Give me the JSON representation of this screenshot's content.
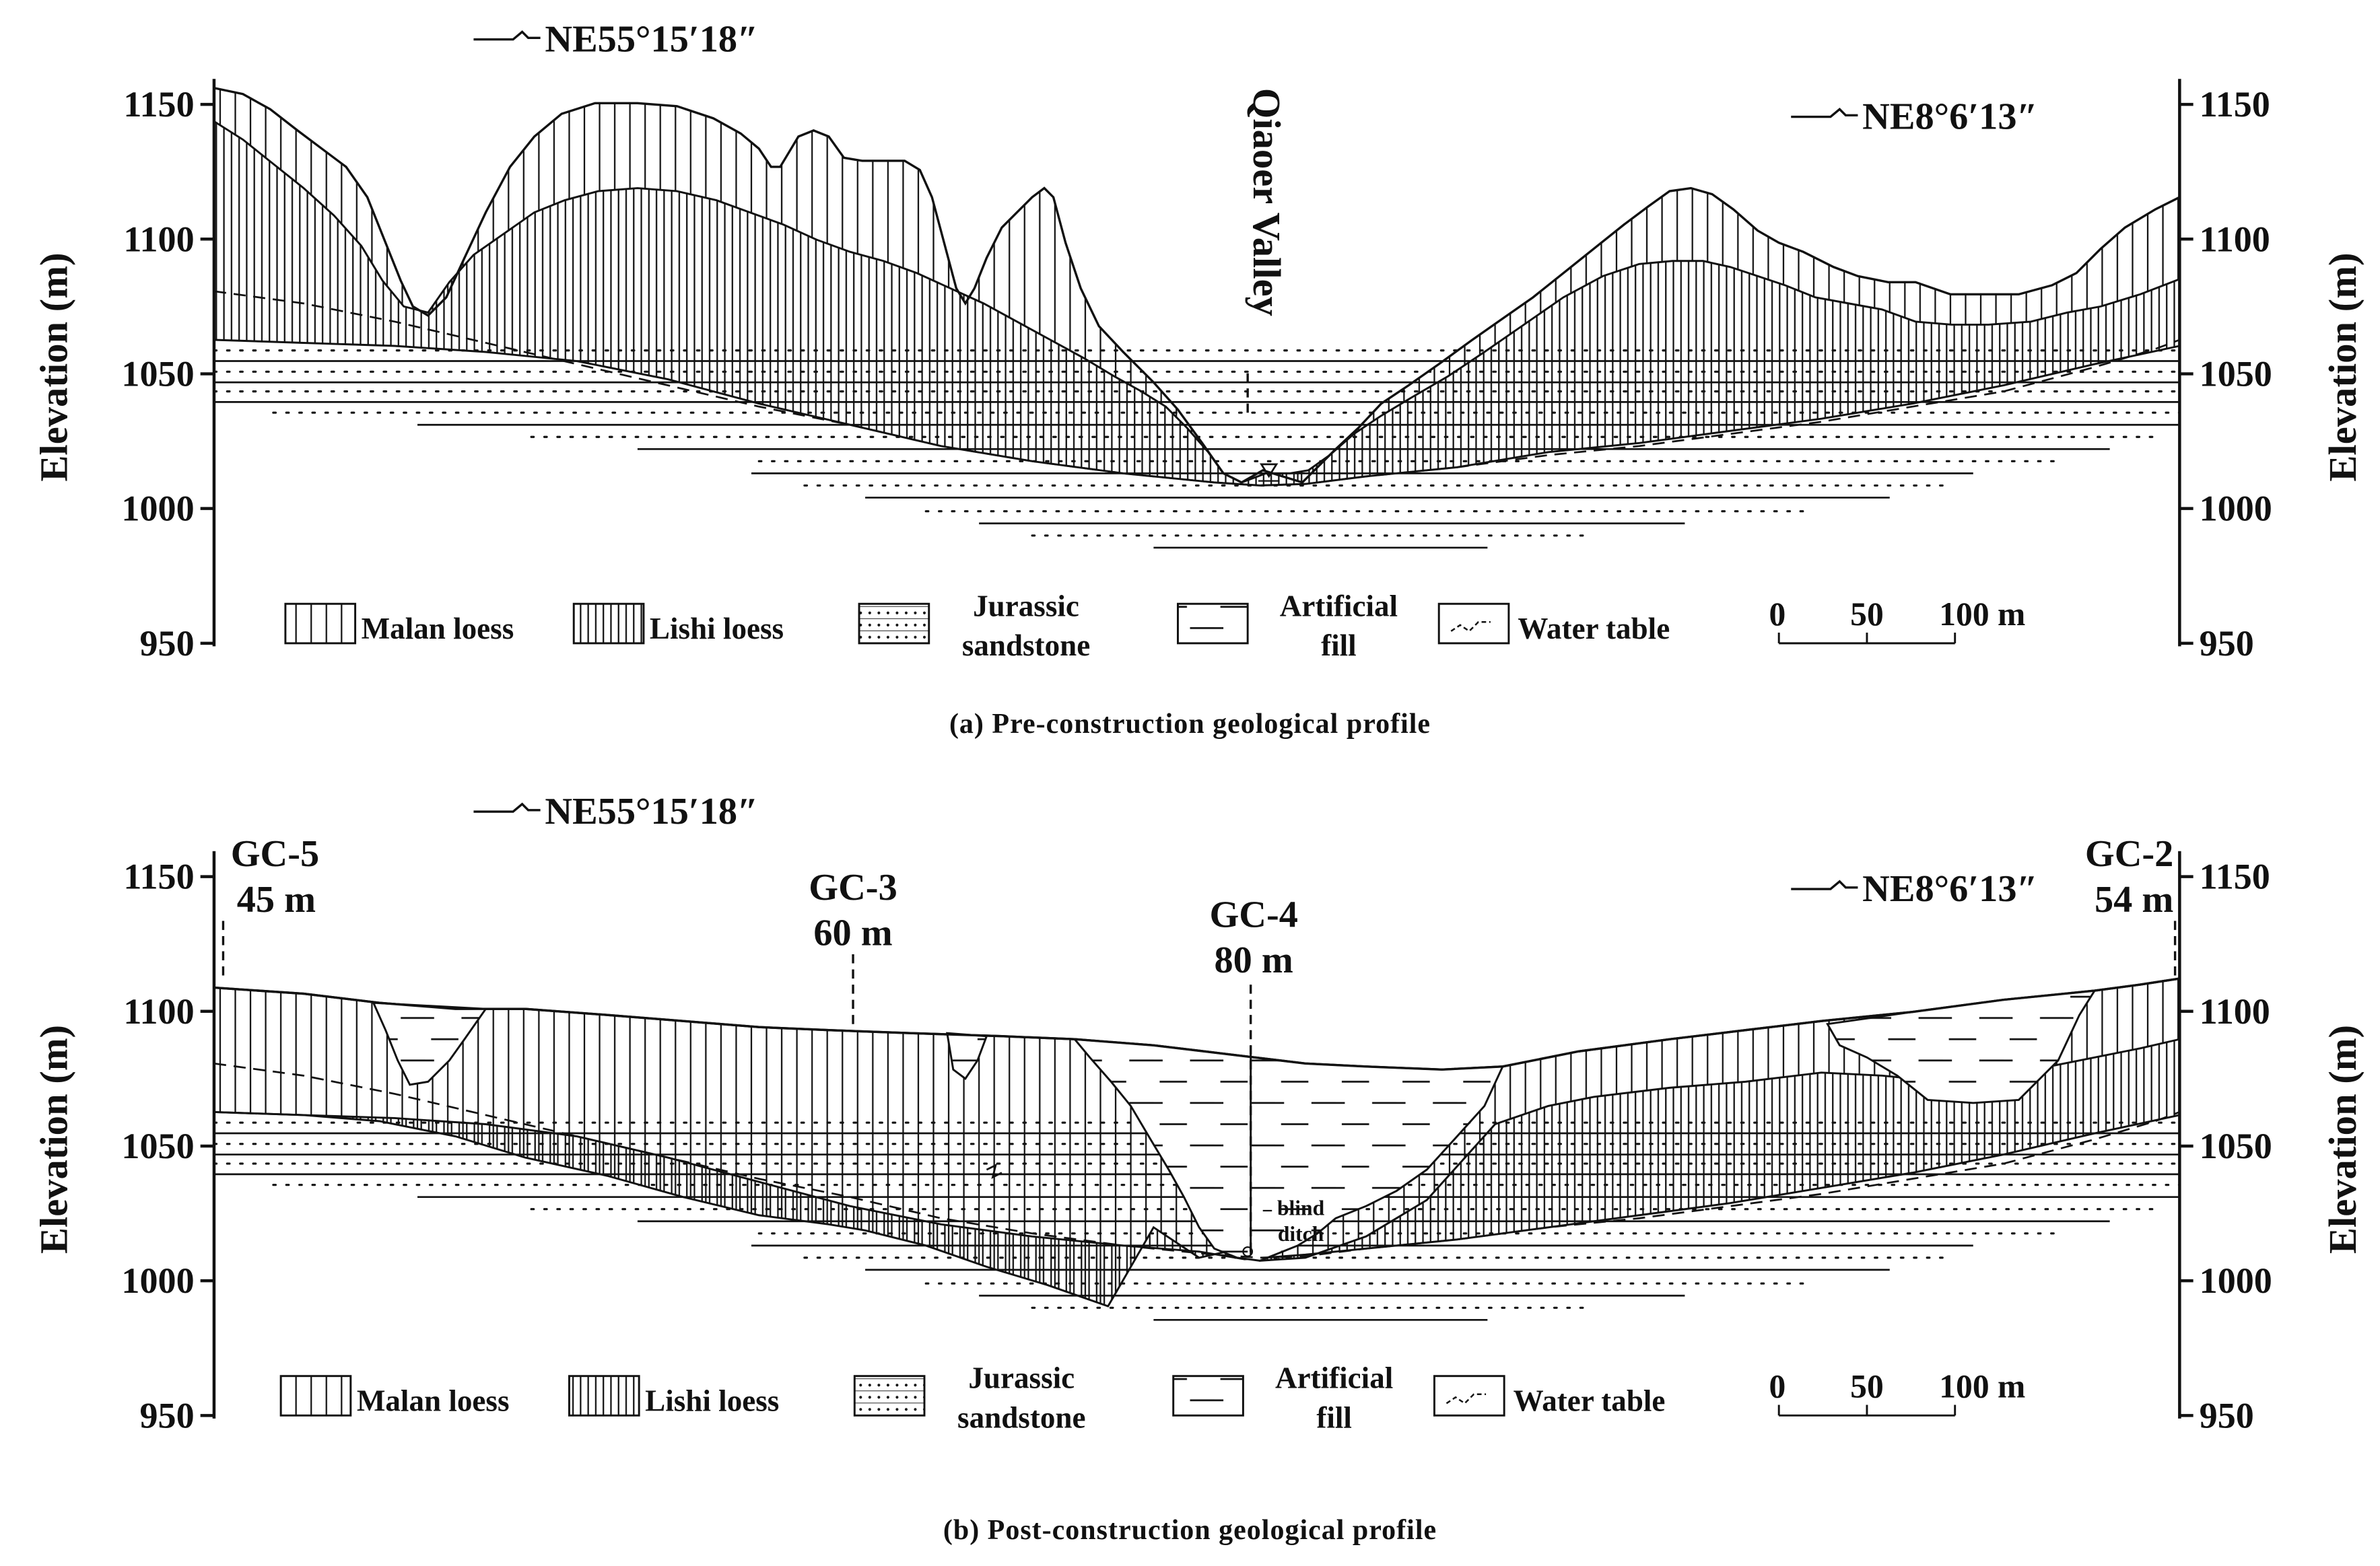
{
  "panels": [
    {
      "id": "a",
      "caption": "(a) Pre-construction geological profile",
      "bearing_left": "NE55°15′18″",
      "bearing_right": "NE8°6′13″",
      "y_axis_label": "Elevation (m)",
      "y_ticks": [
        "1150",
        "1100",
        "1050",
        "1000",
        "950"
      ],
      "valley_label": "Qiaoer Valley",
      "boreholes": [],
      "blind_ditch_label": "",
      "legend": {
        "malan": "Malan loess",
        "lishi": "Lishi loess",
        "sandstone": "Jurassic sandstone",
        "fill": "Artificial fill",
        "water": "Water table"
      },
      "scale_labels": [
        "0",
        "50",
        "100 m"
      ]
    },
    {
      "id": "b",
      "caption": "(b) Post-construction geological profile",
      "bearing_left": "NE55°15′18″",
      "bearing_right": "NE8°6′13″",
      "y_axis_label": "Elevation (m)",
      "y_ticks": [
        "1150",
        "1100",
        "1050",
        "1000",
        "950"
      ],
      "valley_label": "",
      "boreholes": [
        {
          "name": "GC-5",
          "depth": "45 m"
        },
        {
          "name": "GC-3",
          "depth": "60 m"
        },
        {
          "name": "GC-4",
          "depth": "80 m"
        },
        {
          "name": "GC-2",
          "depth": "54 m"
        }
      ],
      "blind_ditch_label": "blind ditch",
      "legend": {
        "malan": "Malan loess",
        "lishi": "Lishi loess",
        "sandstone": "Jurassic sandstone",
        "fill": "Artificial fill",
        "water": "Water table"
      },
      "scale_labels": [
        "0",
        "50",
        "100 m"
      ]
    }
  ],
  "colors": {
    "line": "#111111",
    "background": "#ffffff"
  }
}
